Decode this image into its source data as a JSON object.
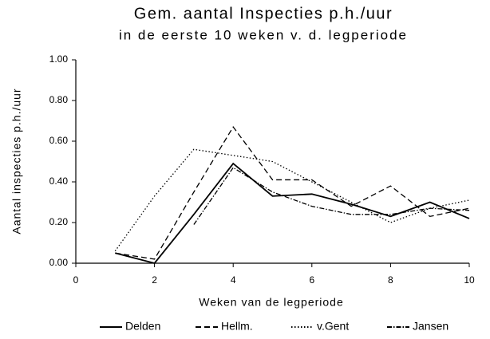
{
  "chart_data": {
    "type": "line",
    "title": "Gem. aantal Inspecties p.h./uur",
    "subtitle": "in de eerste 10 weken v. d. legperiode",
    "x_label": "Weken van de legperiode",
    "y_label": "Aantal inspecties p.h./uur",
    "x": [
      1,
      2,
      3,
      4,
      5,
      6,
      7,
      8,
      9,
      10
    ],
    "series": [
      {
        "name": "Delden",
        "color": "#000000",
        "style": "solid",
        "values": [
          0.05,
          0.0,
          0.24,
          0.49,
          0.33,
          0.34,
          0.29,
          0.23,
          0.3,
          0.22
        ]
      },
      {
        "name": "Hellm.",
        "color": "#000000",
        "style": "dashed",
        "values": [
          0.05,
          0.02,
          0.35,
          0.67,
          0.41,
          0.41,
          0.28,
          0.38,
          0.23,
          0.27
        ]
      },
      {
        "name": "v.Gent",
        "color": "#000000",
        "style": "dotted",
        "values": [
          0.06,
          0.33,
          0.56,
          0.53,
          0.5,
          0.4,
          0.3,
          0.2,
          0.27,
          0.31
        ]
      },
      {
        "name": "Jansen",
        "color": "#000000",
        "style": "dashdot",
        "values": [
          null,
          null,
          0.19,
          0.47,
          0.35,
          0.28,
          0.24,
          0.24,
          0.27,
          0.26
        ]
      }
    ],
    "xlim": [
      0,
      10
    ],
    "xticks": [
      0,
      2,
      4,
      6,
      8,
      10
    ],
    "ylim": [
      0,
      1
    ],
    "yticks": [
      {
        "value": 0,
        "label": "0.00"
      },
      {
        "value": 0.2,
        "label": "0.20"
      },
      {
        "value": 0.4,
        "label": "0.40"
      },
      {
        "value": 0.6,
        "label": "0.60"
      },
      {
        "value": 0.8,
        "label": "0.80"
      },
      {
        "value": 1,
        "label": "1.00"
      }
    ]
  }
}
